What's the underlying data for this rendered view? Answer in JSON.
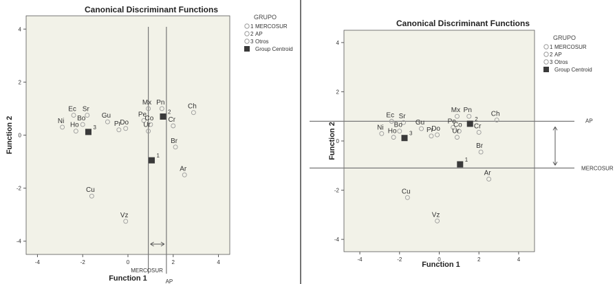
{
  "colors": {
    "plot_bg": "#f2f2e8",
    "point_stroke": "#9a9a9a",
    "centroid": "#3a3a3a",
    "line": "#777777",
    "divider": "#444444"
  },
  "chart_data": [
    {
      "type": "scatter",
      "title": "Canonical Discriminant Functions",
      "xlabel": "Function 1",
      "ylabel": "Function 2",
      "xlim": [
        -4.5,
        4.5
      ],
      "ylim": [
        -4.5,
        4.5
      ],
      "xticks": [
        "-4",
        "-2",
        "0",
        "2",
        "4"
      ],
      "yticks": [
        "-4",
        "-2",
        "0",
        "2",
        "4"
      ],
      "grid": false,
      "legend_title": "GRUPO",
      "legend": [
        {
          "num": "1",
          "label": "MERCOSUR"
        },
        {
          "num": "2",
          "label": "AP"
        },
        {
          "num": "3",
          "label": "Otros"
        },
        {
          "num": "",
          "label": "Group Centroid"
        }
      ],
      "points": [
        {
          "label": "Ni",
          "x": -2.9,
          "y": 0.3
        },
        {
          "label": "Ec",
          "x": -2.4,
          "y": 0.75
        },
        {
          "label": "Sr",
          "x": -1.8,
          "y": 0.75
        },
        {
          "label": "Bo",
          "x": -2.0,
          "y": 0.4
        },
        {
          "label": "Ho",
          "x": -2.3,
          "y": 0.15
        },
        {
          "label": "Gu",
          "x": -0.9,
          "y": 0.5
        },
        {
          "label": "Do",
          "x": -0.1,
          "y": 0.25
        },
        {
          "label": "Pr",
          "x": -0.4,
          "y": 0.2
        },
        {
          "label": "Mx",
          "x": 0.9,
          "y": 1.0
        },
        {
          "label": "Pe",
          "x": 0.7,
          "y": 0.55
        },
        {
          "label": "Co",
          "x": 1.0,
          "y": 0.4
        },
        {
          "label": "Pn",
          "x": 1.5,
          "y": 1.0
        },
        {
          "label": "Ch",
          "x": 2.9,
          "y": 0.85
        },
        {
          "label": "Cr",
          "x": 2.0,
          "y": 0.35
        },
        {
          "label": "Ur",
          "x": 0.9,
          "y": 0.15
        },
        {
          "label": "Br",
          "x": 2.1,
          "y": -0.45
        },
        {
          "label": "Ar",
          "x": 2.5,
          "y": -1.5
        },
        {
          "label": "Cu",
          "x": -1.6,
          "y": -2.3
        },
        {
          "label": "Vz",
          "x": -0.1,
          "y": -3.25
        }
      ],
      "centroids": [
        {
          "group": "1",
          "x": 1.05,
          "y": -0.95
        },
        {
          "group": "2",
          "x": 1.55,
          "y": 0.7
        },
        {
          "group": "3",
          "x": -1.75,
          "y": 0.12
        }
      ],
      "boundary_lines": {
        "orientation": "vertical",
        "labels": [
          "MERCOSUR",
          "AP"
        ],
        "values": [
          0.9,
          1.7
        ]
      }
    },
    {
      "type": "scatter",
      "title": "Canonical Discriminant Functions",
      "xlabel": "Function 1",
      "ylabel": "Function 2",
      "xlim": [
        -4.8,
        4.8
      ],
      "ylim": [
        -4.5,
        4.5
      ],
      "xticks": [
        "-4",
        "-2",
        "0",
        "2",
        "4"
      ],
      "yticks": [
        "-4",
        "-2",
        "0",
        "2",
        "4"
      ],
      "grid": false,
      "legend_title": "GRUPO",
      "legend": [
        {
          "num": "1",
          "label": "MERCOSUR"
        },
        {
          "num": "2",
          "label": "AP"
        },
        {
          "num": "3",
          "label": "Otros"
        },
        {
          "num": "",
          "label": "Group Centroid"
        }
      ],
      "points": [
        {
          "label": "Ni",
          "x": -2.9,
          "y": 0.3
        },
        {
          "label": "Ec",
          "x": -2.4,
          "y": 0.8
        },
        {
          "label": "Sr",
          "x": -1.8,
          "y": 0.75
        },
        {
          "label": "Bo",
          "x": -2.0,
          "y": 0.4
        },
        {
          "label": "Ho",
          "x": -2.3,
          "y": 0.15
        },
        {
          "label": "Gu",
          "x": -0.9,
          "y": 0.5
        },
        {
          "label": "Do",
          "x": -0.1,
          "y": 0.25
        },
        {
          "label": "Pr",
          "x": -0.4,
          "y": 0.2
        },
        {
          "label": "Mx",
          "x": 0.9,
          "y": 1.0
        },
        {
          "label": "Pe",
          "x": 0.7,
          "y": 0.55
        },
        {
          "label": "Co",
          "x": 1.0,
          "y": 0.4
        },
        {
          "label": "Pn",
          "x": 1.5,
          "y": 1.0
        },
        {
          "label": "Ch",
          "x": 2.9,
          "y": 0.85
        },
        {
          "label": "Cr",
          "x": 2.0,
          "y": 0.35
        },
        {
          "label": "Ur",
          "x": 0.9,
          "y": 0.15
        },
        {
          "label": "Br",
          "x": 2.1,
          "y": -0.45
        },
        {
          "label": "Ar",
          "x": 2.5,
          "y": -1.55
        },
        {
          "label": "Cu",
          "x": -1.6,
          "y": -2.3
        },
        {
          "label": "Vz",
          "x": -0.1,
          "y": -3.25
        }
      ],
      "centroids": [
        {
          "group": "1",
          "x": 1.05,
          "y": -0.95
        },
        {
          "group": "2",
          "x": 1.55,
          "y": 0.7
        },
        {
          "group": "3",
          "x": -1.75,
          "y": 0.12
        }
      ],
      "boundary_lines": {
        "orientation": "horizontal",
        "labels": [
          "AP",
          "MERCOSUR"
        ],
        "values": [
          0.8,
          -1.1
        ]
      }
    }
  ]
}
